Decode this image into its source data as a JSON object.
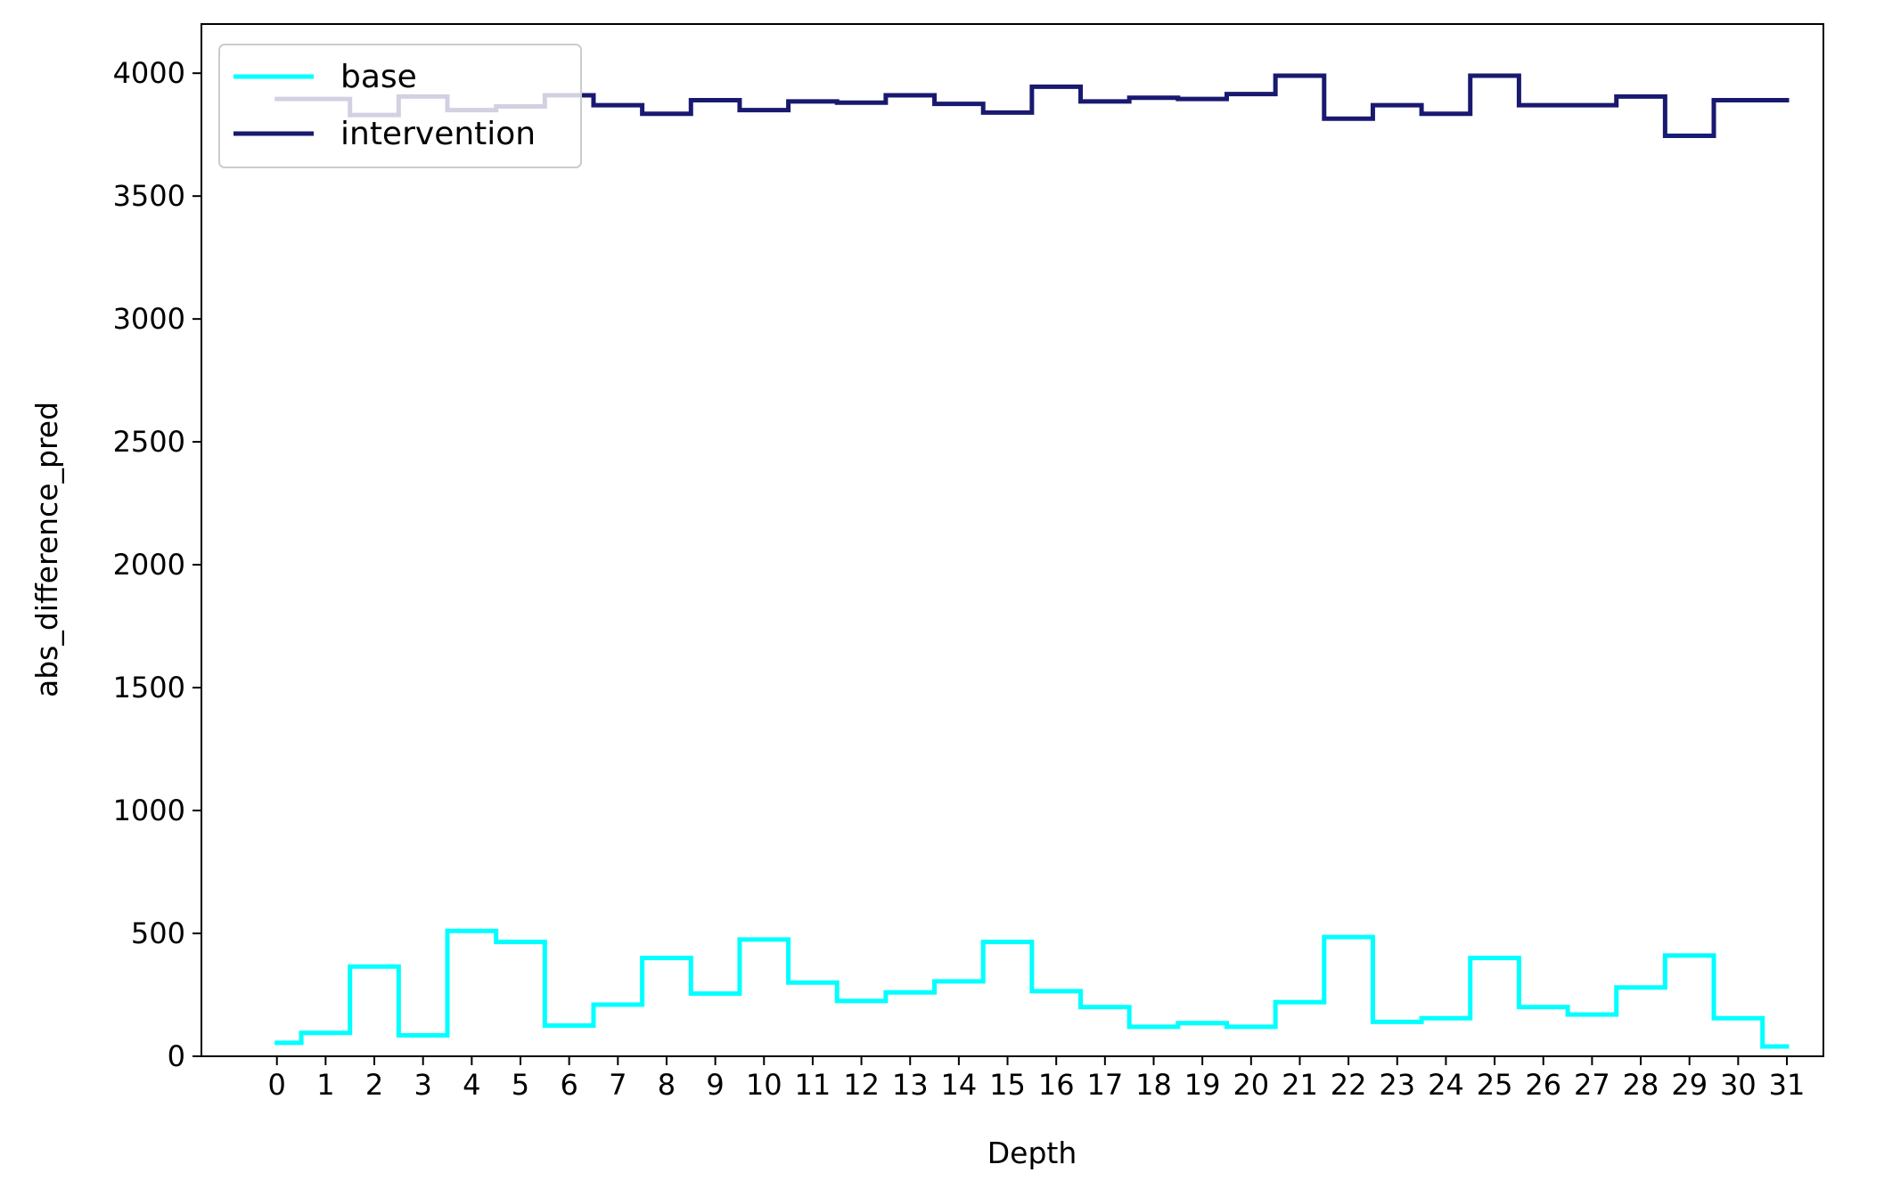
{
  "chart_data": {
    "type": "line",
    "drawstyle": "steps-mid",
    "title": "",
    "xlabel": "Depth",
    "ylabel": "abs_difference_pred",
    "x": [
      0,
      1,
      2,
      3,
      4,
      5,
      6,
      7,
      8,
      9,
      10,
      11,
      12,
      13,
      14,
      15,
      16,
      17,
      18,
      19,
      20,
      21,
      22,
      23,
      24,
      25,
      26,
      27,
      28,
      29,
      30,
      31
    ],
    "xticks": [
      "0",
      "1",
      "2",
      "3",
      "4",
      "5",
      "6",
      "7",
      "8",
      "9",
      "10",
      "11",
      "12",
      "13",
      "14",
      "15",
      "16",
      "17",
      "18",
      "19",
      "20",
      "21",
      "22",
      "23",
      "24",
      "25",
      "26",
      "27",
      "28",
      "29",
      "30",
      "31"
    ],
    "xlim": [
      -1.55,
      31.75
    ],
    "ylim": [
      0,
      4200
    ],
    "yticks": [
      0,
      500,
      1000,
      1500,
      2000,
      2500,
      3000,
      3500,
      4000
    ],
    "ytick_labels": [
      "0",
      "500",
      "1000",
      "1500",
      "2000",
      "2500",
      "3000",
      "3500",
      "4000"
    ],
    "grid": false,
    "legend_position": "upper-left",
    "series": [
      {
        "name": "base",
        "color": "#00FFFF",
        "values": [
          55,
          95,
          365,
          85,
          510,
          465,
          125,
          210,
          400,
          255,
          475,
          300,
          225,
          260,
          305,
          465,
          265,
          200,
          120,
          135,
          120,
          220,
          485,
          140,
          155,
          400,
          200,
          170,
          280,
          410,
          155,
          40
        ]
      },
      {
        "name": "intervention",
        "color": "#191970",
        "values": [
          3895,
          3895,
          3830,
          3905,
          3850,
          3865,
          3910,
          3870,
          3835,
          3890,
          3850,
          3885,
          3880,
          3910,
          3875,
          3840,
          3945,
          3885,
          3900,
          3895,
          3915,
          3990,
          3815,
          3870,
          3835,
          3990,
          3870,
          3870,
          3905,
          3745,
          3890,
          3890
        ]
      }
    ]
  }
}
